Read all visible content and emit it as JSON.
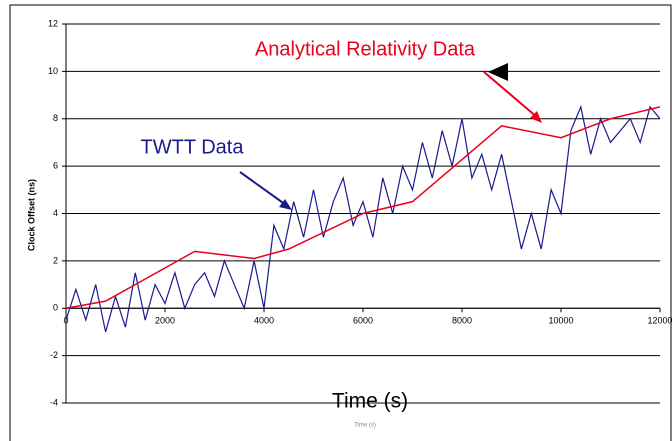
{
  "chart_data": {
    "type": "line",
    "x_label": "Time (s)",
    "y_label": "Clock Offset (ns)",
    "annotations": [
      "Analytical Relativity Data",
      "TWTT Data",
      "Time (s)"
    ],
    "xlim": [
      0,
      12000
    ],
    "ylim": [
      -4,
      12
    ],
    "xticks": [
      0,
      2000,
      4000,
      6000,
      8000,
      10000,
      12000
    ],
    "yticks": [
      -4,
      -2,
      0,
      2,
      4,
      6,
      8,
      10,
      12
    ],
    "grid": true,
    "series": [
      {
        "name": "TWTT Data",
        "color": "#1a1a8c",
        "x": [
          0,
          200,
          400,
          600,
          800,
          1000,
          1200,
          1400,
          1600,
          1800,
          2000,
          2200,
          2400,
          2600,
          2800,
          3000,
          3200,
          3400,
          3600,
          3800,
          4000,
          4200,
          4400,
          4600,
          4800,
          5000,
          5200,
          5400,
          5600,
          5800,
          6000,
          6200,
          6400,
          6600,
          6800,
          7000,
          7200,
          7400,
          7600,
          7800,
          8000,
          8200,
          8400,
          8600,
          8800,
          9000,
          9200,
          9400,
          9600,
          9800,
          10000,
          10200,
          10400,
          10600,
          10800,
          11000,
          11200,
          11400,
          11600,
          11800,
          12000
        ],
        "values": [
          -0.5,
          0.8,
          -0.5,
          1,
          -1,
          0.5,
          -0.8,
          1.5,
          -0.5,
          1,
          0.2,
          1.5,
          0,
          1,
          1.5,
          0.5,
          2,
          1,
          0,
          2,
          0,
          3.5,
          2.5,
          4.5,
          3,
          5,
          3,
          4.5,
          5.5,
          3.5,
          4.5,
          3,
          5.5,
          4,
          6,
          5,
          7,
          5.5,
          7.5,
          6,
          8,
          5.5,
          6.5,
          5,
          6.5,
          4.5,
          2.5,
          4,
          2.5,
          5,
          4,
          7.5,
          8.5,
          6.5,
          8,
          7,
          7.5,
          8,
          7,
          8.5,
          8
        ]
      },
      {
        "name": "Analytical Relativity Data",
        "color": "#e8001c",
        "x": [
          0,
          800,
          2600,
          3800,
          4500,
          6000,
          7000,
          8800,
          10000,
          11000,
          12000
        ],
        "values": [
          0,
          0.3,
          2.4,
          2.1,
          2.5,
          4,
          4.5,
          7.7,
          7.2,
          8,
          8.5
        ]
      }
    ]
  }
}
